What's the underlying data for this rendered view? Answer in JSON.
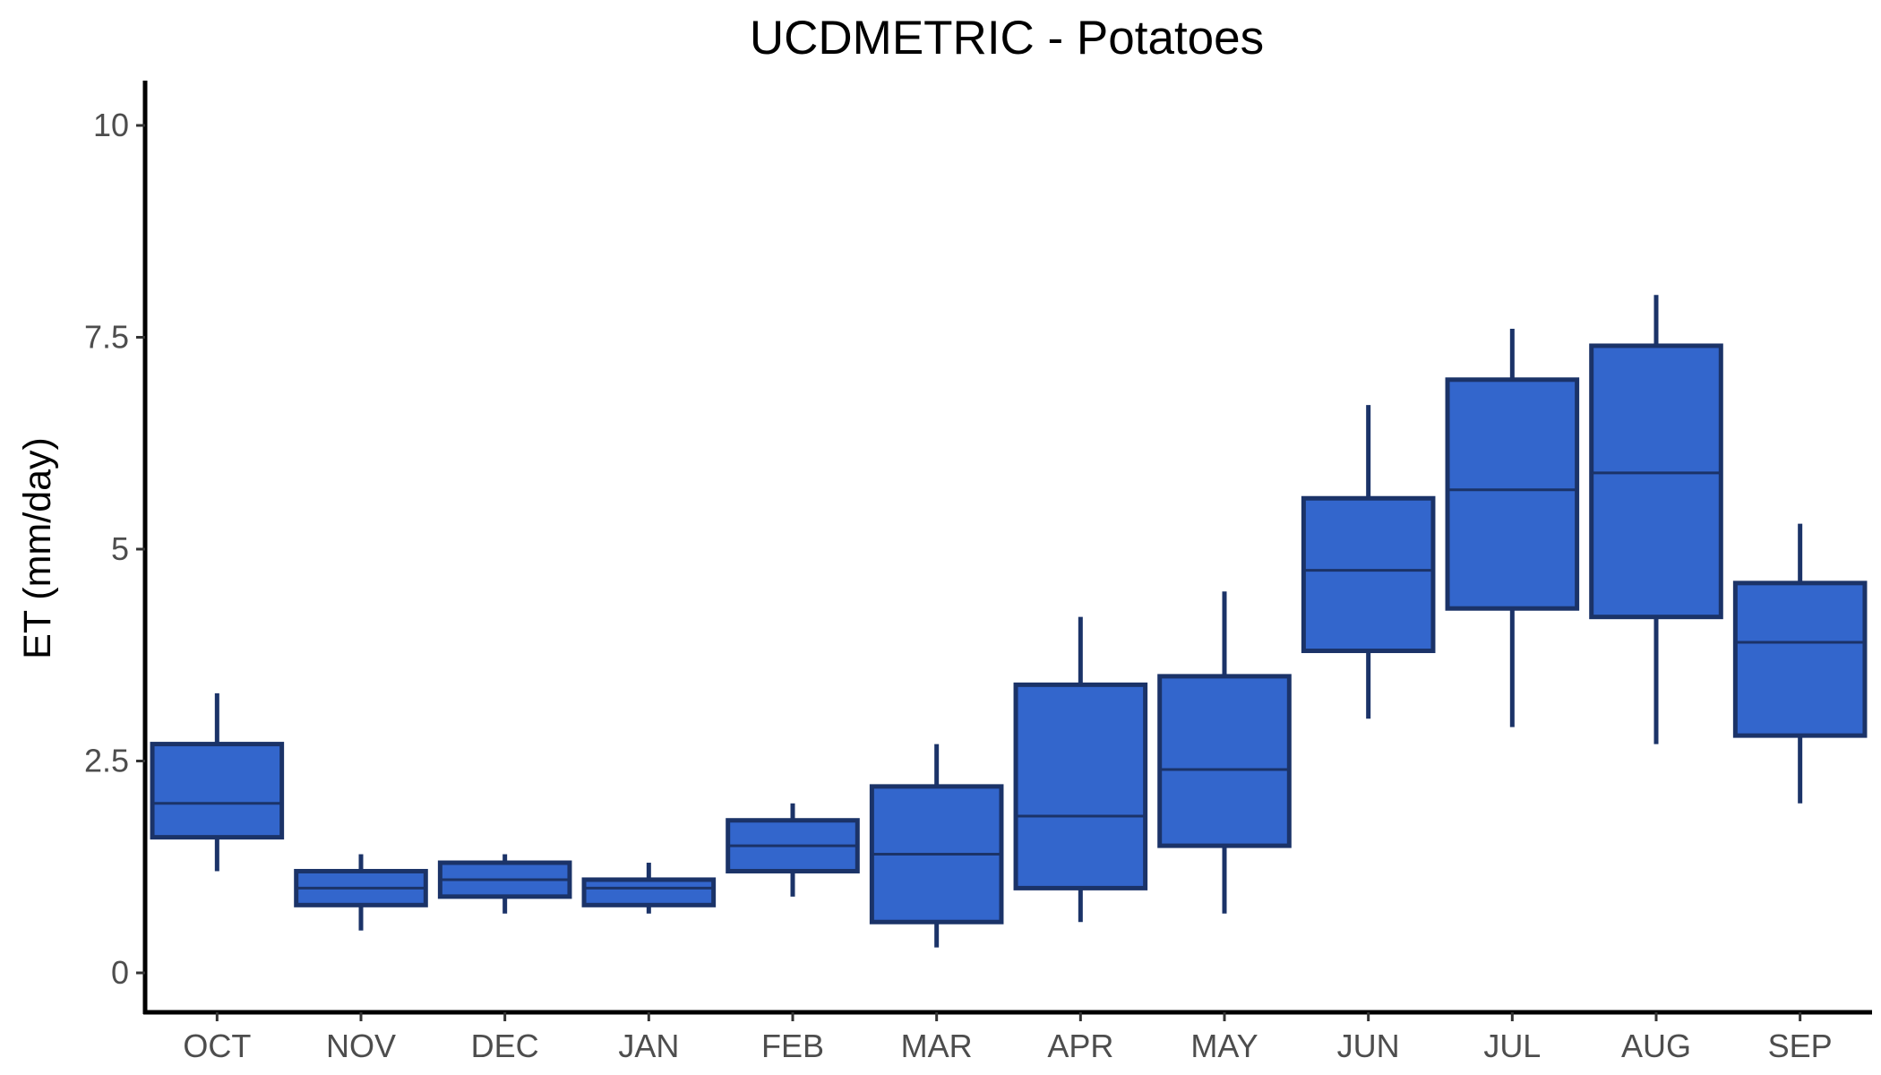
{
  "chart_data": {
    "type": "boxplot",
    "title": "UCDMETRIC - Potatoes",
    "xlabel": "",
    "ylabel": "ET (mm/day)",
    "ylim": [
      -0.45,
      10.5
    ],
    "yticks": [
      0,
      2.5,
      5,
      7.5,
      10
    ],
    "ytick_labels": [
      "0",
      "2.5",
      "5",
      "7.5",
      "10"
    ],
    "grid": false,
    "legend": "none",
    "colors": {
      "box_fill": "#3366cc",
      "box_edge": "#1b3368",
      "axis": "#000000"
    },
    "categories": [
      "OCT",
      "NOV",
      "DEC",
      "JAN",
      "FEB",
      "MAR",
      "APR",
      "MAY",
      "JUN",
      "JUL",
      "AUG",
      "SEP"
    ],
    "boxes": [
      {
        "min": 1.2,
        "q1": 1.6,
        "median": 2.0,
        "q3": 2.7,
        "max": 3.3
      },
      {
        "min": 0.5,
        "q1": 0.8,
        "median": 1.0,
        "q3": 1.2,
        "max": 1.4
      },
      {
        "min": 0.7,
        "q1": 0.9,
        "median": 1.1,
        "q3": 1.3,
        "max": 1.4
      },
      {
        "min": 0.7,
        "q1": 0.8,
        "median": 1.0,
        "q3": 1.1,
        "max": 1.3
      },
      {
        "min": 0.9,
        "q1": 1.2,
        "median": 1.5,
        "q3": 1.8,
        "max": 2.0
      },
      {
        "min": 0.3,
        "q1": 0.6,
        "median": 1.4,
        "q3": 2.2,
        "max": 2.7
      },
      {
        "min": 0.6,
        "q1": 1.0,
        "median": 1.85,
        "q3": 3.4,
        "max": 4.2
      },
      {
        "min": 0.7,
        "q1": 1.5,
        "median": 2.4,
        "q3": 3.5,
        "max": 4.5
      },
      {
        "min": 3.0,
        "q1": 3.8,
        "median": 4.75,
        "q3": 5.6,
        "max": 6.7
      },
      {
        "min": 2.9,
        "q1": 4.3,
        "median": 5.7,
        "q3": 7.0,
        "max": 7.6
      },
      {
        "min": 2.7,
        "q1": 4.2,
        "median": 5.9,
        "q3": 7.4,
        "max": 8.0
      },
      {
        "min": 2.0,
        "q1": 2.8,
        "median": 3.9,
        "q3": 4.6,
        "max": 5.3
      }
    ]
  }
}
